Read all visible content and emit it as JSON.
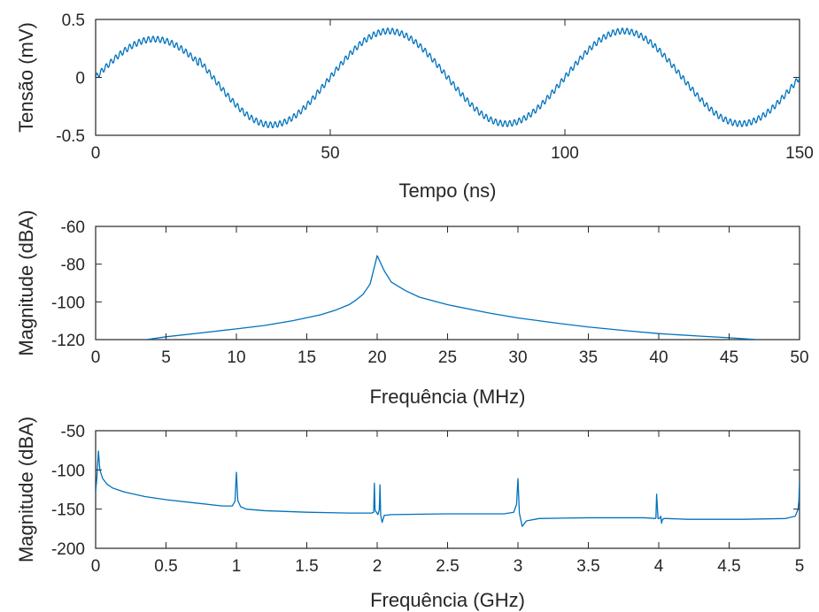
{
  "chart_data": [
    {
      "type": "line",
      "xlabel": "Tempo (ns)",
      "ylabel": "Tensão (mV)",
      "xlim": [
        0,
        150
      ],
      "ylim": [
        -0.5,
        0.5
      ],
      "xticks": [
        0,
        50,
        100,
        150
      ],
      "xtick_labels": [
        "0",
        "50",
        "100",
        "150"
      ],
      "yticks": [
        -0.5,
        0,
        0.5
      ],
      "ytick_labels": [
        "-0.5",
        "0",
        "0.5"
      ],
      "grid": false,
      "color": "#0072BD",
      "signal": {
        "description_of_waveform": "",
        "x": [
          0,
          10,
          22,
          35,
          47,
          60,
          72,
          85,
          97,
          110,
          122,
          135,
          150
        ],
        "y": [
          0.0,
          0.33,
          0.0,
          -0.41,
          0.0,
          0.4,
          0.0,
          -0.4,
          0.0,
          0.4,
          0.0,
          -0.4,
          0.14
        ],
        "carrier_period_ns": 50,
        "ripple_period_ns": 1,
        "ripple_amplitude_mV": 0.025
      }
    },
    {
      "type": "line",
      "xlabel": "Frequência (MHz)",
      "ylabel": "Magnitude (dBA)",
      "xlim": [
        0,
        50
      ],
      "ylim": [
        -120,
        -60
      ],
      "xticks": [
        0,
        5,
        10,
        15,
        20,
        25,
        30,
        35,
        40,
        45,
        50
      ],
      "xtick_labels": [
        "0",
        "5",
        "10",
        "15",
        "20",
        "25",
        "30",
        "35",
        "40",
        "45",
        "50"
      ],
      "yticks": [
        -120,
        -100,
        -80,
        -60
      ],
      "ytick_labels": [
        "-120",
        "-100",
        "-80",
        "-60"
      ],
      "grid": false,
      "color": "#0072BD",
      "series": [
        {
          "x": [
            3.6,
            5,
            8,
            10,
            12,
            14,
            16,
            17,
            18,
            18.5,
            19,
            19.5,
            20,
            20.5,
            21,
            22,
            23,
            25,
            28,
            30,
            33,
            35,
            38,
            40,
            43,
            45,
            47
          ],
          "y": [
            -120,
            -118.5,
            -116,
            -114.3,
            -112.5,
            -110,
            -106.8,
            -104.5,
            -101.5,
            -99,
            -96,
            -90.5,
            -75.5,
            -83.5,
            -89.5,
            -94,
            -97.5,
            -101.5,
            -106,
            -108.5,
            -111.5,
            -113.3,
            -115.5,
            -116.8,
            -118.2,
            -119,
            -120
          ]
        }
      ]
    },
    {
      "type": "line",
      "xlabel": "Frequência (GHz)",
      "ylabel": "Magnitude (dBA)",
      "xlim": [
        0,
        5
      ],
      "ylim": [
        -200,
        -50
      ],
      "xticks": [
        0,
        0.5,
        1,
        1.5,
        2,
        2.5,
        3,
        3.5,
        4,
        4.5,
        5
      ],
      "xtick_labels": [
        "0",
        "0.5",
        "1",
        "1.5",
        "2",
        "2.5",
        "3",
        "3.5",
        "4",
        "4.5",
        "5"
      ],
      "yticks": [
        -200,
        -150,
        -100,
        -50
      ],
      "ytick_labels": [
        "-200",
        "-150",
        "-100",
        "-50"
      ],
      "grid": false,
      "color": "#0072BD",
      "series": [
        {
          "x": [
            0.0,
            0.008,
            0.02,
            0.03,
            0.05,
            0.08,
            0.12,
            0.2,
            0.35,
            0.5,
            0.7,
            0.9,
            0.97,
            0.99,
            1.0,
            1.01,
            1.03,
            1.07,
            1.2,
            1.5,
            1.8,
            1.96,
            1.975,
            1.98,
            1.985,
            1.995,
            2.005,
            2.015,
            2.02,
            2.025,
            2.035,
            2.05,
            2.1,
            2.5,
            2.9,
            2.97,
            2.99,
            3.0,
            3.01,
            3.03,
            3.06,
            3.15,
            3.5,
            3.9,
            3.975,
            3.98,
            3.985,
            3.995,
            4.005,
            4.015,
            4.02,
            4.025,
            4.035,
            4.06,
            4.2,
            4.6,
            4.9,
            4.97,
            4.99,
            4.995,
            5.0
          ],
          "y": [
            -128,
            -112,
            -76,
            -100,
            -111,
            -118,
            -123,
            -128,
            -134,
            -138,
            -142,
            -146,
            -146,
            -140,
            -103,
            -139,
            -147,
            -150,
            -152,
            -154,
            -155,
            -155,
            -154,
            -117,
            -152,
            -154,
            -157,
            -151,
            -119,
            -158,
            -167,
            -158,
            -157,
            -156,
            -156,
            -154,
            -144,
            -111,
            -155,
            -172,
            -165,
            -162,
            -161,
            -161,
            -162,
            -161,
            -131,
            -162,
            -162,
            -159,
            -168,
            -164,
            -162,
            -162,
            -163,
            -163,
            -162,
            -159,
            -150,
            -140,
            -115
          ]
        }
      ]
    }
  ]
}
